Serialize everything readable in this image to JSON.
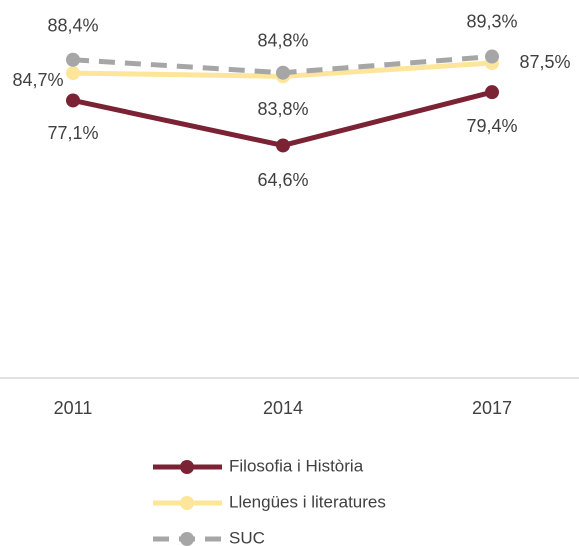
{
  "chart_data": {
    "type": "line",
    "categories": [
      "2011",
      "2014",
      "2017"
    ],
    "ylim": [
      0,
      100
    ],
    "series": [
      {
        "name": "Filosofia i Història",
        "color": "#7b2335",
        "dashed": false,
        "values": [
          77.1,
          64.6,
          79.4
        ],
        "value_labels": [
          "77,1%",
          "64,6%",
          "79,4%"
        ]
      },
      {
        "name": "Llengües i literatures",
        "color": "#fde59a",
        "dashed": false,
        "values": [
          84.7,
          83.8,
          87.5
        ],
        "value_labels": [
          "84,7%",
          "83,8%",
          "87,5%"
        ]
      },
      {
        "name": "SUC",
        "color": "#a6a6a6",
        "dashed": true,
        "values": [
          88.4,
          84.8,
          89.3
        ],
        "value_labels": [
          "88,4%",
          "84,8%",
          "89,3%"
        ]
      }
    ]
  }
}
